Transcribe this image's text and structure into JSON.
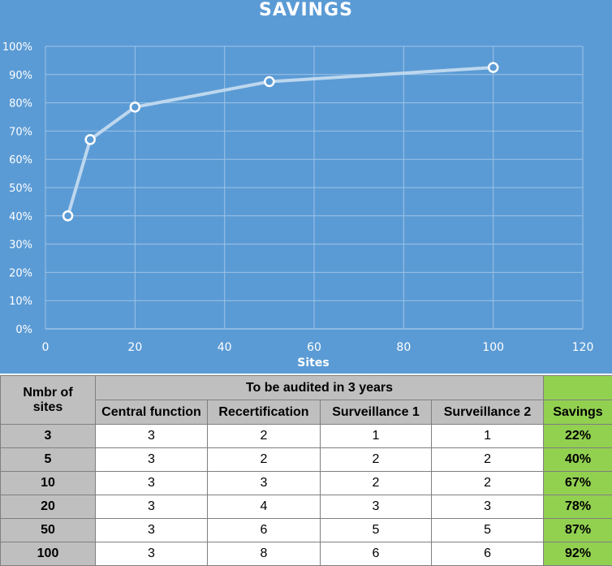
{
  "chart_data": {
    "type": "line",
    "title": "SAVINGS",
    "xlabel": "Sites",
    "ylabel": "",
    "xlim": [
      0,
      120
    ],
    "ylim": [
      0,
      1
    ],
    "xticks": [
      "0",
      "20",
      "40",
      "60",
      "80",
      "100",
      "120"
    ],
    "yticks": [
      "0%",
      "10%",
      "20%",
      "30%",
      "40%",
      "50%",
      "60%",
      "70%",
      "80%",
      "90%",
      "100%"
    ],
    "grid": true,
    "series": [
      {
        "points": [
          {
            "x": 5,
            "y": 0.4
          },
          {
            "x": 10,
            "y": 0.67
          },
          {
            "x": 20,
            "y": 0.785
          },
          {
            "x": 50,
            "y": 0.875
          },
          {
            "x": 100,
            "y": 0.925
          }
        ]
      }
    ],
    "colors": {
      "background": "#5b9bd5",
      "line": "#bdd7ee",
      "marker_fill": "#5b9bd5",
      "marker_stroke": "#ffffff",
      "grid": "#9dc3e6"
    }
  },
  "table": {
    "header_sites_line1": "Nmbr of",
    "header_sites_line2": "sites",
    "header_group": "To be audited in 3 years",
    "header_central": "Central function",
    "header_recert": "Recertification",
    "header_surv1": "Surveillance 1",
    "header_surv2": "Surveillance 2",
    "header_savings": "Savings",
    "rows": [
      {
        "sites": "3",
        "central": "3",
        "recert": "2",
        "surv1": "1",
        "surv2": "1",
        "savings": "22%"
      },
      {
        "sites": "5",
        "central": "3",
        "recert": "2",
        "surv1": "2",
        "surv2": "2",
        "savings": "40%"
      },
      {
        "sites": "10",
        "central": "3",
        "recert": "3",
        "surv1": "2",
        "surv2": "2",
        "savings": "67%"
      },
      {
        "sites": "20",
        "central": "3",
        "recert": "4",
        "surv1": "3",
        "surv2": "3",
        "savings": "78%"
      },
      {
        "sites": "50",
        "central": "3",
        "recert": "6",
        "surv1": "5",
        "surv2": "5",
        "savings": "87%"
      },
      {
        "sites": "100",
        "central": "3",
        "recert": "8",
        "surv1": "6",
        "surv2": "6",
        "savings": "92%"
      }
    ]
  }
}
